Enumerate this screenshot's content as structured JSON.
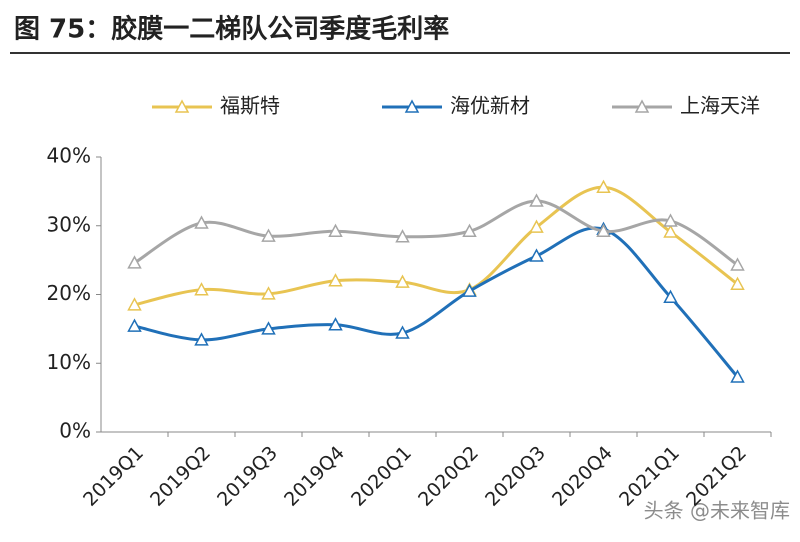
{
  "chart_data": {
    "type": "line",
    "title": "图 75：胶膜一二梯队公司季度毛利率",
    "categories": [
      "2019Q1",
      "2019Q2",
      "2019Q3",
      "2019Q4",
      "2020Q1",
      "2020Q2",
      "2020Q3",
      "2020Q4",
      "2021Q1",
      "2021Q2"
    ],
    "series": [
      {
        "name": "福斯特",
        "color": "#e8c452",
        "values": [
          18.5,
          20.7,
          20.1,
          22.0,
          21.8,
          20.7,
          29.8,
          35.6,
          29.1,
          21.5
        ]
      },
      {
        "name": "海优新材",
        "color": "#2070b8",
        "values": [
          15.4,
          13.4,
          15.0,
          15.6,
          14.4,
          20.5,
          25.6,
          29.5,
          19.6,
          8.0
        ]
      },
      {
        "name": "上海天洋",
        "color": "#a6a6a6",
        "values": [
          24.6,
          30.4,
          28.5,
          29.2,
          28.4,
          29.2,
          33.6,
          29.2,
          30.7,
          24.3
        ]
      }
    ],
    "ylim": [
      0,
      40
    ],
    "yticks": [
      {
        "value": 0,
        "label": "0%"
      },
      {
        "value": 10,
        "label": "10%"
      },
      {
        "value": 20,
        "label": "20%"
      },
      {
        "value": 30,
        "label": "30%"
      },
      {
        "value": 40,
        "label": "40%"
      }
    ],
    "smooth": true,
    "watermark": "头条 @未来智库"
  }
}
